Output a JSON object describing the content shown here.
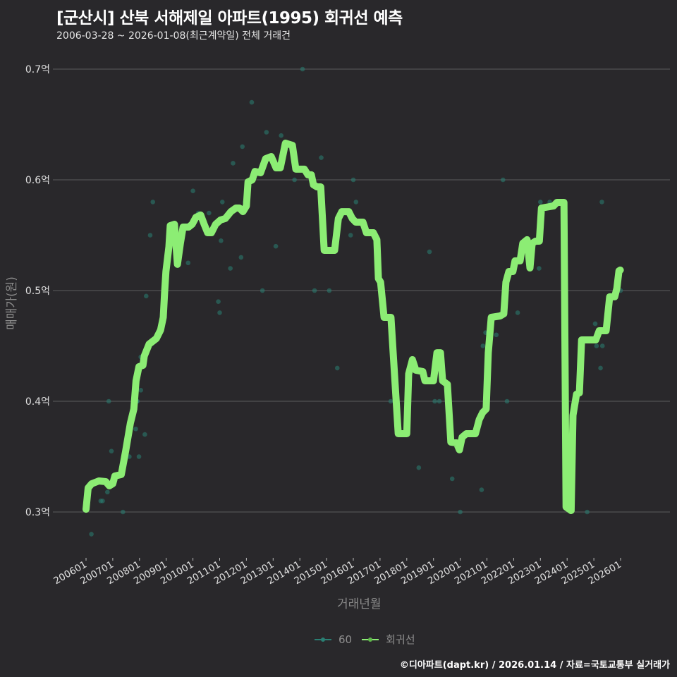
{
  "header": {
    "title": "[군산시] 산북 서해제일 아파트(1995) 회귀선 예측",
    "subtitle": "2006-03-28 ~ 2026-01-08(최근계약일) 전체 거래건"
  },
  "footer": {
    "credit": "©디아파트(dapt.kr) / 2026.01.14 / 자료=국토교통부 실거래가"
  },
  "colors": {
    "background": "#29282b",
    "grid": "#5c5c5e",
    "regression": "#8ced74",
    "points": "#2a7f73",
    "tick_text": "#e0e0e0",
    "axis_title": "#8a8a8a"
  },
  "legend": {
    "items": [
      {
        "label": "60",
        "color": "#2a7f73"
      },
      {
        "label": "회귀선",
        "color": "#8ced74"
      }
    ]
  },
  "chart_data": {
    "type": "line",
    "title": "[군산시] 산북 서해제일 아파트(1995) 회귀선 예측",
    "subtitle": "2006-03-28 ~ 2026-01-08(최근계약일) 전체 거래건",
    "xlabel": "거래년월",
    "ylabel": "매매가(원)",
    "x_ticks": [
      "200601",
      "200701",
      "200801",
      "200901",
      "201001",
      "201101",
      "201201",
      "201301",
      "201401",
      "201501",
      "201601",
      "201701",
      "201801",
      "201901",
      "202001",
      "202101",
      "202201",
      "202301",
      "202401",
      "202501",
      "202601"
    ],
    "y_ticks": [
      {
        "value": 3000,
        "label": "0.3억"
      },
      {
        "value": 4000,
        "label": "0.4억"
      },
      {
        "value": 5000,
        "label": "0.5억"
      },
      {
        "value": 6000,
        "label": "0.6억"
      },
      {
        "value": 7000,
        "label": "0.7억"
      }
    ],
    "y_unit": "만원",
    "xlim": [
      2006.0,
      2026.1
    ],
    "ylim": [
      2650,
      7200
    ],
    "grid": true,
    "legend_position": "bottom",
    "series": [
      {
        "name": "회귀선",
        "type": "line",
        "points": [
          [
            2006.0,
            3025
          ],
          [
            2006.08,
            3217
          ],
          [
            2006.21,
            3255
          ],
          [
            2006.48,
            3280
          ],
          [
            2006.74,
            3274
          ],
          [
            2006.87,
            3236
          ],
          [
            2007.0,
            3255
          ],
          [
            2007.08,
            3325
          ],
          [
            2007.32,
            3338
          ],
          [
            2007.48,
            3548
          ],
          [
            2007.66,
            3803
          ],
          [
            2007.79,
            3930
          ],
          [
            2007.87,
            4185
          ],
          [
            2007.98,
            4312
          ],
          [
            2008.13,
            4325
          ],
          [
            2008.18,
            4408
          ],
          [
            2008.36,
            4516
          ],
          [
            2008.63,
            4567
          ],
          [
            2008.79,
            4643
          ],
          [
            2008.89,
            4758
          ],
          [
            2008.94,
            4981
          ],
          [
            2008.99,
            5172
          ],
          [
            2009.1,
            5395
          ],
          [
            2009.15,
            5586
          ],
          [
            2009.31,
            5599
          ],
          [
            2009.42,
            5236
          ],
          [
            2009.53,
            5427
          ],
          [
            2009.63,
            5573
          ],
          [
            2009.84,
            5573
          ],
          [
            2009.97,
            5599
          ],
          [
            2010.11,
            5662
          ],
          [
            2010.29,
            5682
          ],
          [
            2010.42,
            5599
          ],
          [
            2010.55,
            5522
          ],
          [
            2010.69,
            5522
          ],
          [
            2010.85,
            5599
          ],
          [
            2011.03,
            5637
          ],
          [
            2011.21,
            5650
          ],
          [
            2011.42,
            5713
          ],
          [
            2011.61,
            5745
          ],
          [
            2011.74,
            5745
          ],
          [
            2011.87,
            5713
          ],
          [
            2012.0,
            5764
          ],
          [
            2012.06,
            5981
          ],
          [
            2012.22,
            6000
          ],
          [
            2012.32,
            6076
          ],
          [
            2012.53,
            6064
          ],
          [
            2012.72,
            6191
          ],
          [
            2012.93,
            6210
          ],
          [
            2013.11,
            6108
          ],
          [
            2013.27,
            6108
          ],
          [
            2013.46,
            6331
          ],
          [
            2013.72,
            6312
          ],
          [
            2013.85,
            6096
          ],
          [
            2014.17,
            6096
          ],
          [
            2014.3,
            6045
          ],
          [
            2014.43,
            6045
          ],
          [
            2014.51,
            5955
          ],
          [
            2014.64,
            5936
          ],
          [
            2014.78,
            5936
          ],
          [
            2014.91,
            5363
          ],
          [
            2015.3,
            5363
          ],
          [
            2015.44,
            5650
          ],
          [
            2015.57,
            5713
          ],
          [
            2015.83,
            5713
          ],
          [
            2015.96,
            5650
          ],
          [
            2016.09,
            5618
          ],
          [
            2016.36,
            5618
          ],
          [
            2016.49,
            5522
          ],
          [
            2016.75,
            5522
          ],
          [
            2016.88,
            5459
          ],
          [
            2016.94,
            5108
          ],
          [
            2017.02,
            5076
          ],
          [
            2017.15,
            4758
          ],
          [
            2017.41,
            4758
          ],
          [
            2017.49,
            4439
          ],
          [
            2017.68,
            3707
          ],
          [
            2018.0,
            3707
          ],
          [
            2018.07,
            4248
          ],
          [
            2018.21,
            4376
          ],
          [
            2018.34,
            4280
          ],
          [
            2018.6,
            4268
          ],
          [
            2018.68,
            4185
          ],
          [
            2019.0,
            4185
          ],
          [
            2019.13,
            4439
          ],
          [
            2019.26,
            4439
          ],
          [
            2019.34,
            4185
          ],
          [
            2019.52,
            4153
          ],
          [
            2019.65,
            3631
          ],
          [
            2019.86,
            3624
          ],
          [
            2019.97,
            3561
          ],
          [
            2020.07,
            3675
          ],
          [
            2020.23,
            3707
          ],
          [
            2020.57,
            3707
          ],
          [
            2020.71,
            3834
          ],
          [
            2020.84,
            3898
          ],
          [
            2020.97,
            3930
          ],
          [
            2021.05,
            4439
          ],
          [
            2021.16,
            4758
          ],
          [
            2021.5,
            4771
          ],
          [
            2021.63,
            4790
          ],
          [
            2021.71,
            5076
          ],
          [
            2021.82,
            5172
          ],
          [
            2021.97,
            5172
          ],
          [
            2022.05,
            5268
          ],
          [
            2022.24,
            5268
          ],
          [
            2022.34,
            5427
          ],
          [
            2022.5,
            5459
          ],
          [
            2022.61,
            5204
          ],
          [
            2022.69,
            5427
          ],
          [
            2022.82,
            5446
          ],
          [
            2022.96,
            5446
          ],
          [
            2023.04,
            5745
          ],
          [
            2023.49,
            5764
          ],
          [
            2023.62,
            5796
          ],
          [
            2023.88,
            5796
          ],
          [
            2023.96,
            3045
          ],
          [
            2024.15,
            3013
          ],
          [
            2024.22,
            3873
          ],
          [
            2024.35,
            4064
          ],
          [
            2024.46,
            4076
          ],
          [
            2024.54,
            4554
          ],
          [
            2025.07,
            4554
          ],
          [
            2025.2,
            4637
          ],
          [
            2025.46,
            4637
          ],
          [
            2025.59,
            4943
          ],
          [
            2025.78,
            4943
          ],
          [
            2025.86,
            5019
          ],
          [
            2025.94,
            5178
          ],
          [
            2025.99,
            5185
          ]
        ]
      },
      {
        "name": "60",
        "type": "scatter",
        "points": [
          [
            2006.05,
            3100
          ],
          [
            2006.2,
            2800
          ],
          [
            2006.55,
            3100
          ],
          [
            2006.62,
            3100
          ],
          [
            2006.8,
            3180
          ],
          [
            2006.85,
            4000
          ],
          [
            2006.95,
            3550
          ],
          [
            2007.38,
            3000
          ],
          [
            2007.62,
            3500
          ],
          [
            2007.86,
            3750
          ],
          [
            2007.92,
            4000
          ],
          [
            2007.98,
            3500
          ],
          [
            2008.05,
            4100
          ],
          [
            2008.2,
            3700
          ],
          [
            2008.25,
            4950
          ],
          [
            2008.4,
            5500
          ],
          [
            2008.5,
            5800
          ],
          [
            2007.9,
            4000
          ],
          [
            2008.05,
            4400
          ],
          [
            2009.82,
            5250
          ],
          [
            2010.0,
            5900
          ],
          [
            2010.2,
            5700
          ],
          [
            2010.6,
            5700
          ],
          [
            2010.95,
            4900
          ],
          [
            2011.0,
            4800
          ],
          [
            2011.05,
            5450
          ],
          [
            2011.1,
            5800
          ],
          [
            2011.4,
            5200
          ],
          [
            2011.5,
            6150
          ],
          [
            2011.8,
            5300
          ],
          [
            2011.85,
            6300
          ],
          [
            2011.95,
            5800
          ],
          [
            2012.2,
            6700
          ],
          [
            2012.6,
            5000
          ],
          [
            2012.75,
            6430
          ],
          [
            2013.1,
            5400
          ],
          [
            2013.3,
            6400
          ],
          [
            2013.8,
            6000
          ],
          [
            2014.1,
            7000
          ],
          [
            2014.55,
            5000
          ],
          [
            2014.8,
            6200
          ],
          [
            2015.1,
            5000
          ],
          [
            2015.4,
            4300
          ],
          [
            2015.9,
            5500
          ],
          [
            2016.0,
            6000
          ],
          [
            2016.1,
            5800
          ],
          [
            2017.4,
            4000
          ],
          [
            2018.45,
            3400
          ],
          [
            2018.85,
            5350
          ],
          [
            2019.05,
            4000
          ],
          [
            2019.22,
            4000
          ],
          [
            2019.7,
            3300
          ],
          [
            2020.0,
            3000
          ],
          [
            2020.8,
            3200
          ],
          [
            2020.85,
            4500
          ],
          [
            2020.95,
            4620
          ],
          [
            2021.05,
            4620
          ],
          [
            2021.35,
            4600
          ],
          [
            2021.6,
            6000
          ],
          [
            2021.75,
            4000
          ],
          [
            2022.15,
            4800
          ],
          [
            2022.95,
            5200
          ],
          [
            2023.0,
            5800
          ],
          [
            2023.35,
            5800
          ],
          [
            2024.75,
            3000
          ],
          [
            2025.05,
            4700
          ],
          [
            2025.1,
            4500
          ],
          [
            2025.3,
            5800
          ],
          [
            2025.25,
            4300
          ],
          [
            2025.32,
            4500
          ],
          [
            2026.0,
            5000
          ]
        ]
      }
    ]
  }
}
